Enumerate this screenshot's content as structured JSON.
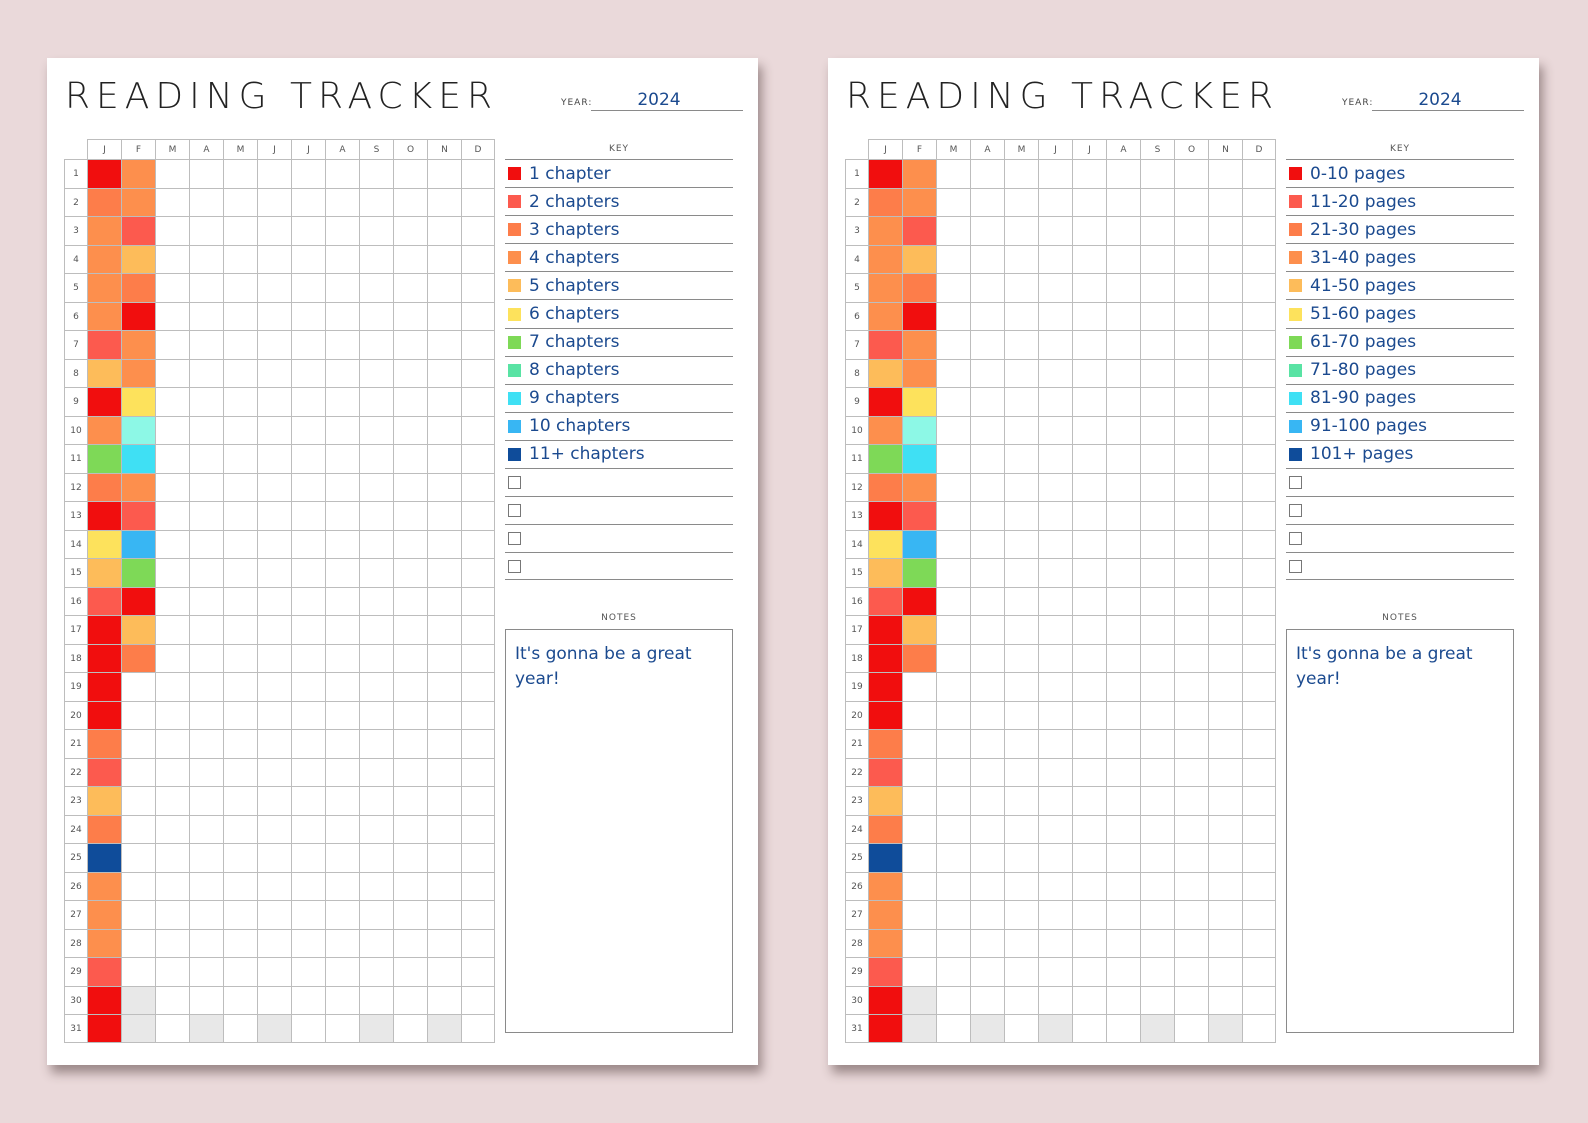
{
  "colors": {
    "c1": "#f10e0e",
    "c2": "#fc5a4e",
    "c3": "#fd7d4a",
    "c4": "#fd8f4d",
    "c5": "#fdbc5a",
    "c6": "#fde25c",
    "c7": "#7ed957",
    "c8": "#59e3a4",
    "c9": "#3fe0f4",
    "c10": "#38b6f3",
    "c11": "#0f4c9a",
    "c_lightcyan": "#8df8e6",
    "unused": "#e8e8e8"
  },
  "months": [
    "J",
    "F",
    "M",
    "A",
    "M",
    "J",
    "J",
    "A",
    "S",
    "O",
    "N",
    "D"
  ],
  "days": [
    "1",
    "2",
    "3",
    "4",
    "5",
    "6",
    "7",
    "8",
    "9",
    "10",
    "11",
    "12",
    "13",
    "14",
    "15",
    "16",
    "17",
    "18",
    "19",
    "20",
    "21",
    "22",
    "23",
    "24",
    "25",
    "26",
    "27",
    "28",
    "29",
    "30",
    "31"
  ],
  "tracker_data": {
    "january": [
      "c1",
      "c3",
      "c4",
      "c4",
      "c4",
      "c4",
      "c2",
      "c5",
      "c1",
      "c4",
      "c7",
      "c3",
      "c1",
      "c6",
      "c5",
      "c2",
      "c1",
      "c1",
      "c1",
      "c1",
      "c3",
      "c2",
      "c5",
      "c3",
      "c11",
      "c4",
      "c4",
      "c4",
      "c2",
      "c1",
      "c1"
    ],
    "february": [
      "c4",
      "c4",
      "c2",
      "c5",
      "c3",
      "c1",
      "c4",
      "c4",
      "c6",
      "c_lightcyan",
      "c9",
      "c4",
      "c2",
      "c10",
      "c7",
      "c1",
      "c5",
      "c3"
    ],
    "unused_cells": [
      [
        1,
        30
      ],
      [
        1,
        31
      ],
      [
        3,
        31
      ],
      [
        5,
        31
      ],
      [
        8,
        31
      ],
      [
        10,
        31
      ]
    ]
  },
  "pages": [
    {
      "title": "READING TRACKER",
      "year_label": "YEAR:",
      "year": "2024",
      "key_title": "KEY",
      "key": [
        {
          "label": "1 chapter",
          "color": "c1"
        },
        {
          "label": "2 chapters",
          "color": "c2"
        },
        {
          "label": "3 chapters",
          "color": "c3"
        },
        {
          "label": "4 chapters",
          "color": "c4"
        },
        {
          "label": "5 chapters",
          "color": "c5"
        },
        {
          "label": "6 chapters",
          "color": "c6"
        },
        {
          "label": "7 chapters",
          "color": "c7"
        },
        {
          "label": "8 chapters",
          "color": "c8"
        },
        {
          "label": "9 chapters",
          "color": "c9"
        },
        {
          "label": "10 chapters",
          "color": "c10"
        },
        {
          "label": "11+ chapters",
          "color": "c11"
        },
        {
          "label": "",
          "color": ""
        },
        {
          "label": "",
          "color": ""
        },
        {
          "label": "",
          "color": ""
        },
        {
          "label": "",
          "color": ""
        }
      ],
      "notes_title": "NOTES",
      "notes": "It's gonna be a great year!"
    },
    {
      "title": "READING TRACKER",
      "year_label": "YEAR:",
      "year": "2024",
      "key_title": "KEY",
      "key": [
        {
          "label": "0-10 pages",
          "color": "c1"
        },
        {
          "label": "11-20 pages",
          "color": "c2"
        },
        {
          "label": "21-30 pages",
          "color": "c3"
        },
        {
          "label": "31-40 pages",
          "color": "c4"
        },
        {
          "label": "41-50 pages",
          "color": "c5"
        },
        {
          "label": "51-60 pages",
          "color": "c6"
        },
        {
          "label": "61-70 pages",
          "color": "c7"
        },
        {
          "label": "71-80 pages",
          "color": "c8"
        },
        {
          "label": "81-90 pages",
          "color": "c9"
        },
        {
          "label": "91-100 pages",
          "color": "c10"
        },
        {
          "label": "101+ pages",
          "color": "c11"
        },
        {
          "label": "",
          "color": ""
        },
        {
          "label": "",
          "color": ""
        },
        {
          "label": "",
          "color": ""
        },
        {
          "label": "",
          "color": ""
        }
      ],
      "notes_title": "NOTES",
      "notes": "It's gonna be a great year!"
    }
  ]
}
